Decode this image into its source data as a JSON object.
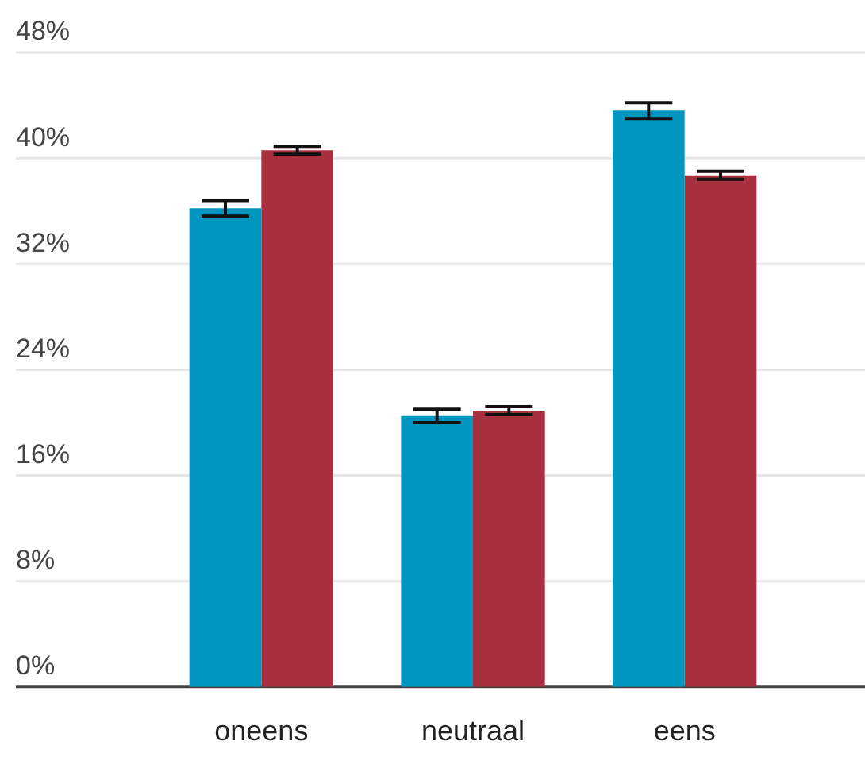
{
  "chart_data": {
    "type": "bar",
    "categories": [
      "oneens",
      "neutraal",
      "eens"
    ],
    "series": [
      {
        "color": "#0096c0",
        "values": [
          36.2,
          20.5,
          43.6
        ],
        "errors": [
          0.6,
          0.5,
          0.6
        ]
      },
      {
        "color": "#a8303f",
        "values": [
          40.6,
          20.9,
          38.7
        ],
        "errors": [
          0.3,
          0.3,
          0.3
        ]
      }
    ],
    "ylim": [
      0,
      48
    ],
    "yticks": [
      {
        "value": 0,
        "label": "0%"
      },
      {
        "value": 8,
        "label": "8%"
      },
      {
        "value": 16,
        "label": "16%"
      },
      {
        "value": 24,
        "label": "24%"
      },
      {
        "value": 32,
        "label": "32%"
      },
      {
        "value": 40,
        "label": "40%"
      },
      {
        "value": 48,
        "label": "48%"
      }
    ],
    "grid": "y",
    "legend": false
  }
}
